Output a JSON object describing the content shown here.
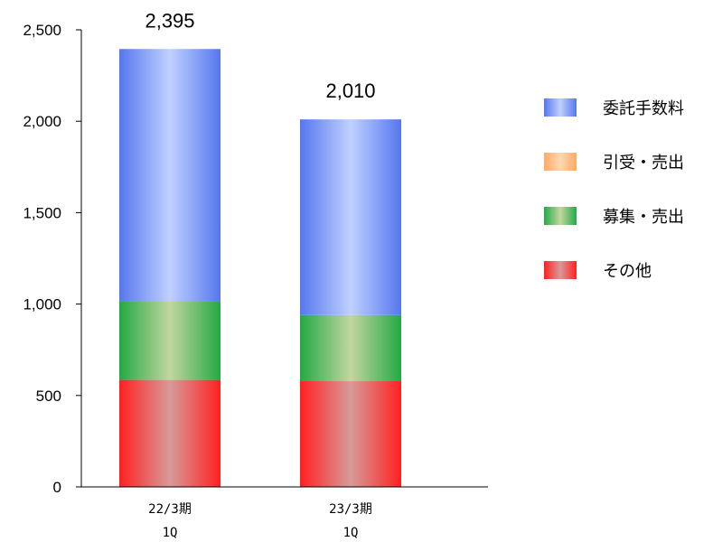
{
  "chart_data": {
    "type": "bar",
    "stacked": true,
    "categories": [
      [
        "22/3期",
        "1Q"
      ],
      [
        "23/3期",
        "1Q"
      ]
    ],
    "series": [
      {
        "name": "その他",
        "values": [
          585,
          578
        ],
        "color": "#ff2020",
        "color_mid": "#d89a9a"
      },
      {
        "name": "募集・売出",
        "values": [
          430,
          362
        ],
        "color": "#22aa44",
        "color_mid": "#c2d6a0"
      },
      {
        "name": "引受・売出",
        "values": [
          0,
          0
        ],
        "color": "#ffaa66",
        "color_mid": "#ffd8b0"
      },
      {
        "name": "委託手数料",
        "values": [
          1380,
          1070
        ],
        "color": "#5577ee",
        "color_mid": "#c0d0ff"
      }
    ],
    "totals": [
      "2,395",
      "2,010"
    ],
    "yticks": [
      "0",
      "500",
      "1,000",
      "1,500",
      "2,000",
      "2,500"
    ],
    "ylim": [
      0,
      2500
    ],
    "legend_order": [
      "委託手数料",
      "引受・売出",
      "募集・売出",
      "その他"
    ],
    "legend_position": "right",
    "grid": false
  }
}
